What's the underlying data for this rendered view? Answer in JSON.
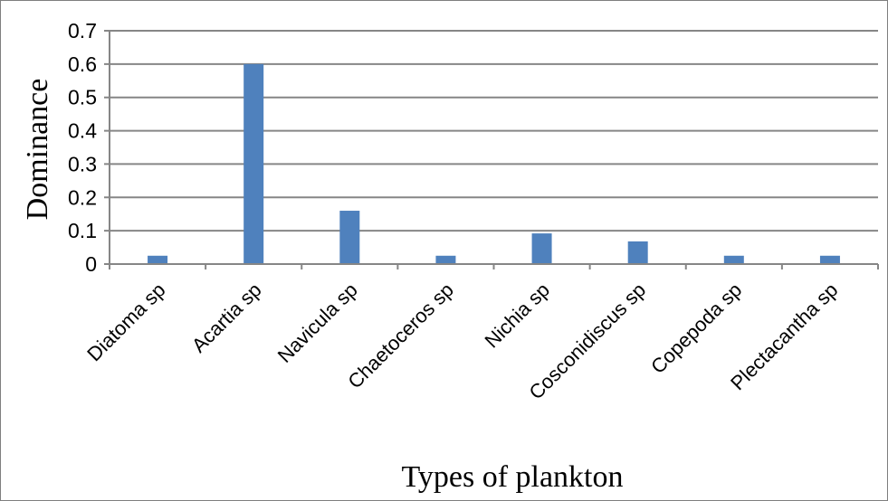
{
  "chart_data": {
    "type": "bar",
    "title": "",
    "xlabel": "Types of plankton",
    "ylabel": "Dominance",
    "categories": [
      "Diatoma sp",
      "Acartia sp",
      "Navicula sp",
      "Chaetoceros sp",
      "Nichia sp",
      "Cosconidiscus sp",
      "Copepoda sp",
      "Plectacantha sp"
    ],
    "values": [
      0.025,
      0.6,
      0.16,
      0.025,
      0.092,
      0.068,
      0.025,
      0.025
    ],
    "ylim": [
      0,
      0.7
    ],
    "yticks": [
      "0",
      "0.1",
      "0.2",
      "0.3",
      "0.4",
      "0.5",
      "0.6",
      "0.7"
    ],
    "grid": true,
    "legend": "none",
    "bar_color": "#4f81bd",
    "gridline_color": "#868686"
  }
}
